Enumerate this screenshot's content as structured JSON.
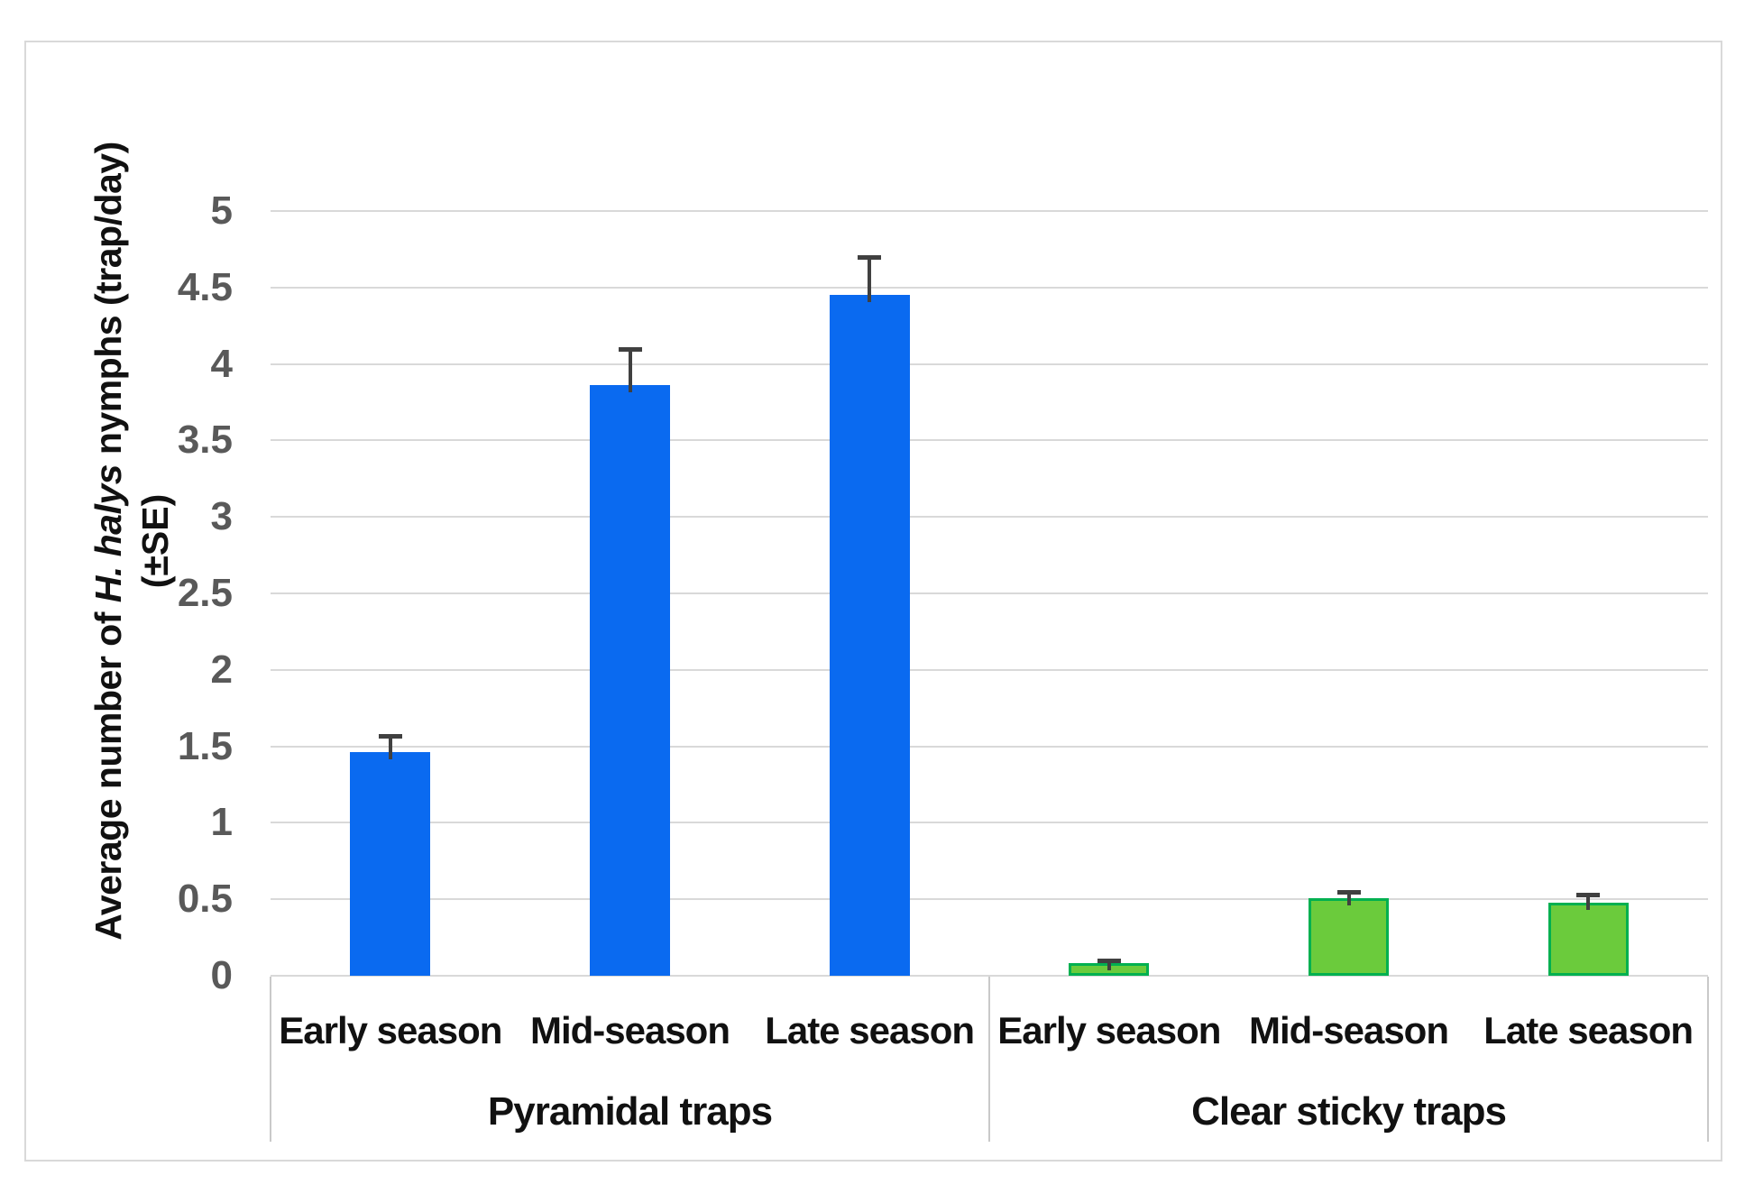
{
  "y_axis": {
    "title_line1_prefix": "Average number of ",
    "title_italic": "H. halys",
    "title_line1_suffix": " nymphs (trap/day)",
    "title_line2": "(±SE)"
  },
  "chart_data": {
    "type": "bar",
    "title": "",
    "ylabel": "Average number of H. halys nymphs (trap/day) (±SE)",
    "ylabel_italic_part": "H. halys",
    "ylim": [
      0,
      5
    ],
    "ytick_interval": 0.5,
    "yticks": [
      "0",
      "0.5",
      "1",
      "1.5",
      "2",
      "2.5",
      "3",
      "3.5",
      "4",
      "4.5",
      "5"
    ],
    "grid": true,
    "legend": false,
    "error_bars": "upper standard error whiskers",
    "colors": {
      "pyramidal_fill": "#0a6af0",
      "sticky_fill": "#6bcb3c",
      "sticky_border": "#00b050",
      "error_bar": "#404040",
      "gridline": "#d9d9d9",
      "tick_text": "#595959"
    },
    "groups": [
      {
        "label": "Pyramidal traps",
        "fill": "#0a6af0",
        "border": null,
        "bars": [
          {
            "category": "Early season",
            "value": 1.46,
            "error_high": 1.57
          },
          {
            "category": "Mid-season",
            "value": 3.86,
            "error_high": 4.1
          },
          {
            "category": "Late season",
            "value": 4.45,
            "error_high": 4.7
          }
        ]
      },
      {
        "label": "Clear sticky traps",
        "fill": "#6bcb3c",
        "border": "#00b050",
        "bars": [
          {
            "category": "Early season",
            "value": 0.08,
            "error_high": 0.1
          },
          {
            "category": "Mid-season",
            "value": 0.51,
            "error_high": 0.55
          },
          {
            "category": "Late season",
            "value": 0.48,
            "error_high": 0.53
          }
        ]
      }
    ]
  }
}
